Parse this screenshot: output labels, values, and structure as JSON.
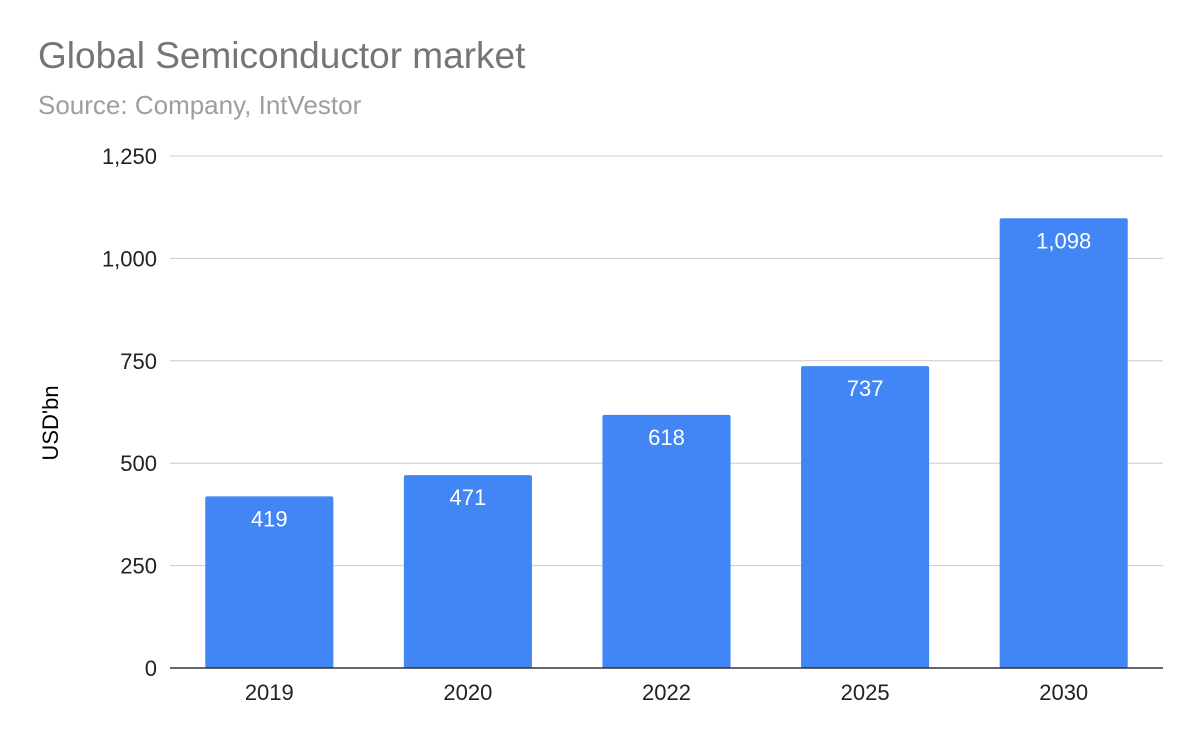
{
  "chart_data": {
    "type": "bar",
    "title": "Global Semiconductor market",
    "subtitle": "Source: Company, IntVestor",
    "xlabel": "",
    "ylabel": "USD'bn",
    "categories": [
      "2019",
      "2020",
      "2022",
      "2025",
      "2030"
    ],
    "series": [
      {
        "values": [
          419,
          471,
          618,
          737,
          1098
        ],
        "data_labels": [
          "419",
          "471",
          "618",
          "737",
          "1,098"
        ]
      }
    ],
    "ylim": [
      0,
      1250
    ],
    "y_ticks": [
      0,
      250,
      500,
      750,
      1000,
      1250
    ],
    "y_tick_labels": [
      "0",
      "250",
      "500",
      "750",
      "1,000",
      "1,250"
    ],
    "grid": true,
    "legend": "none",
    "colors": {
      "bar": "#4285f4",
      "grid": "#cccccc",
      "axis": "#333333",
      "title": "#757575",
      "subtitle": "#9e9e9e",
      "data_label": "#ffffff"
    }
  }
}
